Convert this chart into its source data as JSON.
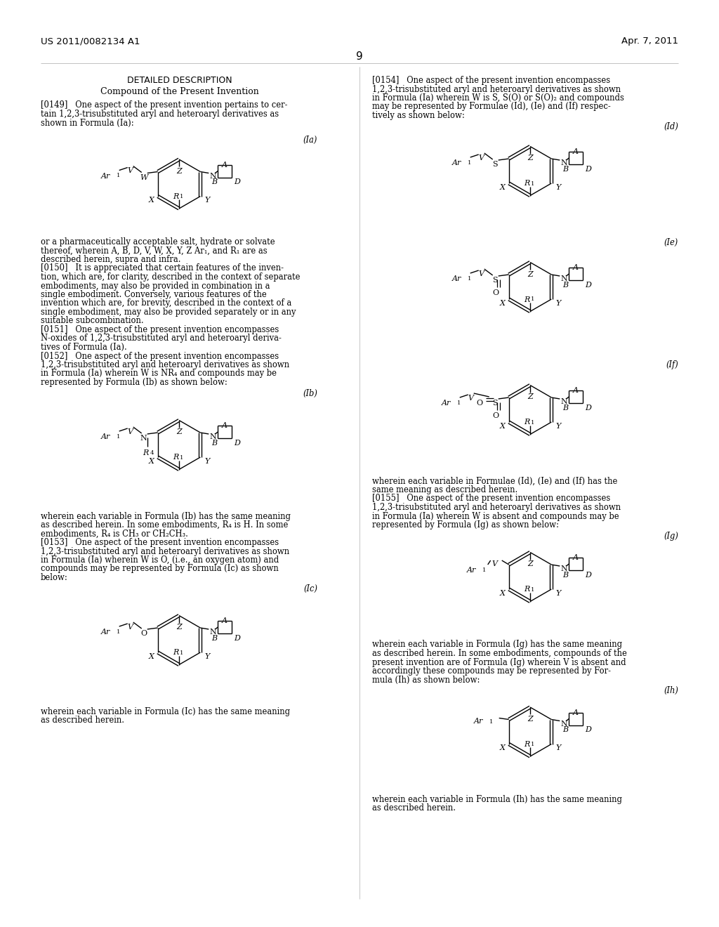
{
  "page_width": 10.24,
  "page_height": 13.2,
  "background": "#ffffff",
  "header_left": "US 2011/0082134 A1",
  "header_right": "Apr. 7, 2011",
  "page_number": "9"
}
